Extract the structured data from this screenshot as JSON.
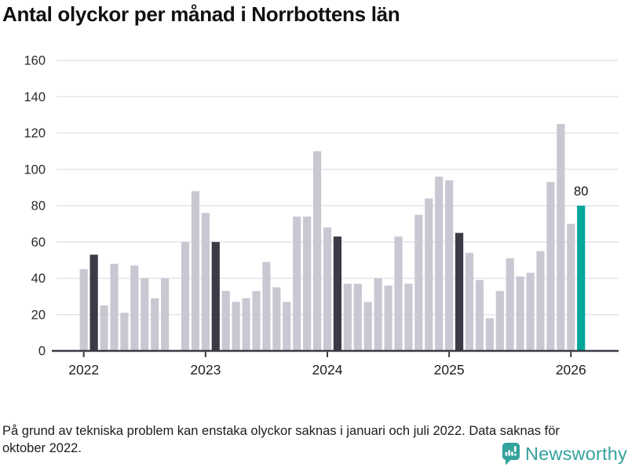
{
  "footnote": {
    "text": "På grund av tekniska problem kan enstaka olyckor saknas i januari och juli 2022. Data saknas för oktober 2022."
  },
  "logo": {
    "text": "Newsworthy",
    "color": "#35a29d",
    "icon": "newsworthy-chart-bubble-icon"
  },
  "chart_data": {
    "type": "bar",
    "title": "Antal olyckor per månad i Norrbottens län",
    "xlabel": "",
    "ylabel": "",
    "ylim": [
      0,
      160
    ],
    "grid": "horizontal",
    "y_ticks": [
      0,
      20,
      40,
      60,
      80,
      100,
      120,
      140,
      160
    ],
    "x_ticks": [
      {
        "year": 2022,
        "label": "2022"
      },
      {
        "year": 2023,
        "label": "2023"
      },
      {
        "year": 2024,
        "label": "2024"
      },
      {
        "year": 2025,
        "label": "2025"
      },
      {
        "year": 2026,
        "label": "2026"
      }
    ],
    "missing_months": [
      "2022-10"
    ],
    "colors": {
      "bar_default": "#c9c8d2",
      "bar_highlight": "#3b3b47",
      "bar_current": "#00a69c",
      "axis": "#3a3a44",
      "gridline": "#e4e3e9",
      "tick_text": "#2a2a2a",
      "annotation_text": "#111111"
    },
    "annotation": {
      "bar": "2026-02",
      "label": "80"
    },
    "bars": [
      {
        "month": "2022-01",
        "value": 45,
        "style": "default"
      },
      {
        "month": "2022-02",
        "value": 53,
        "style": "dark"
      },
      {
        "month": "2022-03",
        "value": 25,
        "style": "default"
      },
      {
        "month": "2022-04",
        "value": 48,
        "style": "default"
      },
      {
        "month": "2022-05",
        "value": 21,
        "style": "default"
      },
      {
        "month": "2022-06",
        "value": 47,
        "style": "default"
      },
      {
        "month": "2022-07",
        "value": 40,
        "style": "default"
      },
      {
        "month": "2022-08",
        "value": 29,
        "style": "default"
      },
      {
        "month": "2022-09",
        "value": 40,
        "style": "default"
      },
      {
        "month": "2022-11",
        "value": 60,
        "style": "default"
      },
      {
        "month": "2022-12",
        "value": 88,
        "style": "default"
      },
      {
        "month": "2023-01",
        "value": 76,
        "style": "default"
      },
      {
        "month": "2023-02",
        "value": 60,
        "style": "dark"
      },
      {
        "month": "2023-03",
        "value": 33,
        "style": "default"
      },
      {
        "month": "2023-04",
        "value": 27,
        "style": "default"
      },
      {
        "month": "2023-05",
        "value": 29,
        "style": "default"
      },
      {
        "month": "2023-06",
        "value": 33,
        "style": "default"
      },
      {
        "month": "2023-07",
        "value": 49,
        "style": "default"
      },
      {
        "month": "2023-08",
        "value": 35,
        "style": "default"
      },
      {
        "month": "2023-09",
        "value": 27,
        "style": "default"
      },
      {
        "month": "2023-10",
        "value": 74,
        "style": "default"
      },
      {
        "month": "2023-11",
        "value": 74,
        "style": "default"
      },
      {
        "month": "2023-12",
        "value": 110,
        "style": "default"
      },
      {
        "month": "2024-01",
        "value": 68,
        "style": "default"
      },
      {
        "month": "2024-02",
        "value": 63,
        "style": "dark"
      },
      {
        "month": "2024-03",
        "value": 37,
        "style": "default"
      },
      {
        "month": "2024-04",
        "value": 37,
        "style": "default"
      },
      {
        "month": "2024-05",
        "value": 27,
        "style": "default"
      },
      {
        "month": "2024-06",
        "value": 40,
        "style": "default"
      },
      {
        "month": "2024-07",
        "value": 36,
        "style": "default"
      },
      {
        "month": "2024-08",
        "value": 63,
        "style": "default"
      },
      {
        "month": "2024-09",
        "value": 37,
        "style": "default"
      },
      {
        "month": "2024-10",
        "value": 75,
        "style": "default"
      },
      {
        "month": "2024-11",
        "value": 84,
        "style": "default"
      },
      {
        "month": "2024-12",
        "value": 96,
        "style": "default"
      },
      {
        "month": "2025-01",
        "value": 94,
        "style": "default"
      },
      {
        "month": "2025-02",
        "value": 65,
        "style": "dark"
      },
      {
        "month": "2025-03",
        "value": 54,
        "style": "default"
      },
      {
        "month": "2025-04",
        "value": 39,
        "style": "default"
      },
      {
        "month": "2025-05",
        "value": 18,
        "style": "default"
      },
      {
        "month": "2025-06",
        "value": 33,
        "style": "default"
      },
      {
        "month": "2025-07",
        "value": 51,
        "style": "default"
      },
      {
        "month": "2025-08",
        "value": 41,
        "style": "default"
      },
      {
        "month": "2025-09",
        "value": 43,
        "style": "default"
      },
      {
        "month": "2025-10",
        "value": 55,
        "style": "default"
      },
      {
        "month": "2025-11",
        "value": 93,
        "style": "default"
      },
      {
        "month": "2025-12",
        "value": 125,
        "style": "default"
      },
      {
        "month": "2026-01",
        "value": 70,
        "style": "default"
      },
      {
        "month": "2026-02",
        "value": 80,
        "style": "current"
      }
    ]
  }
}
